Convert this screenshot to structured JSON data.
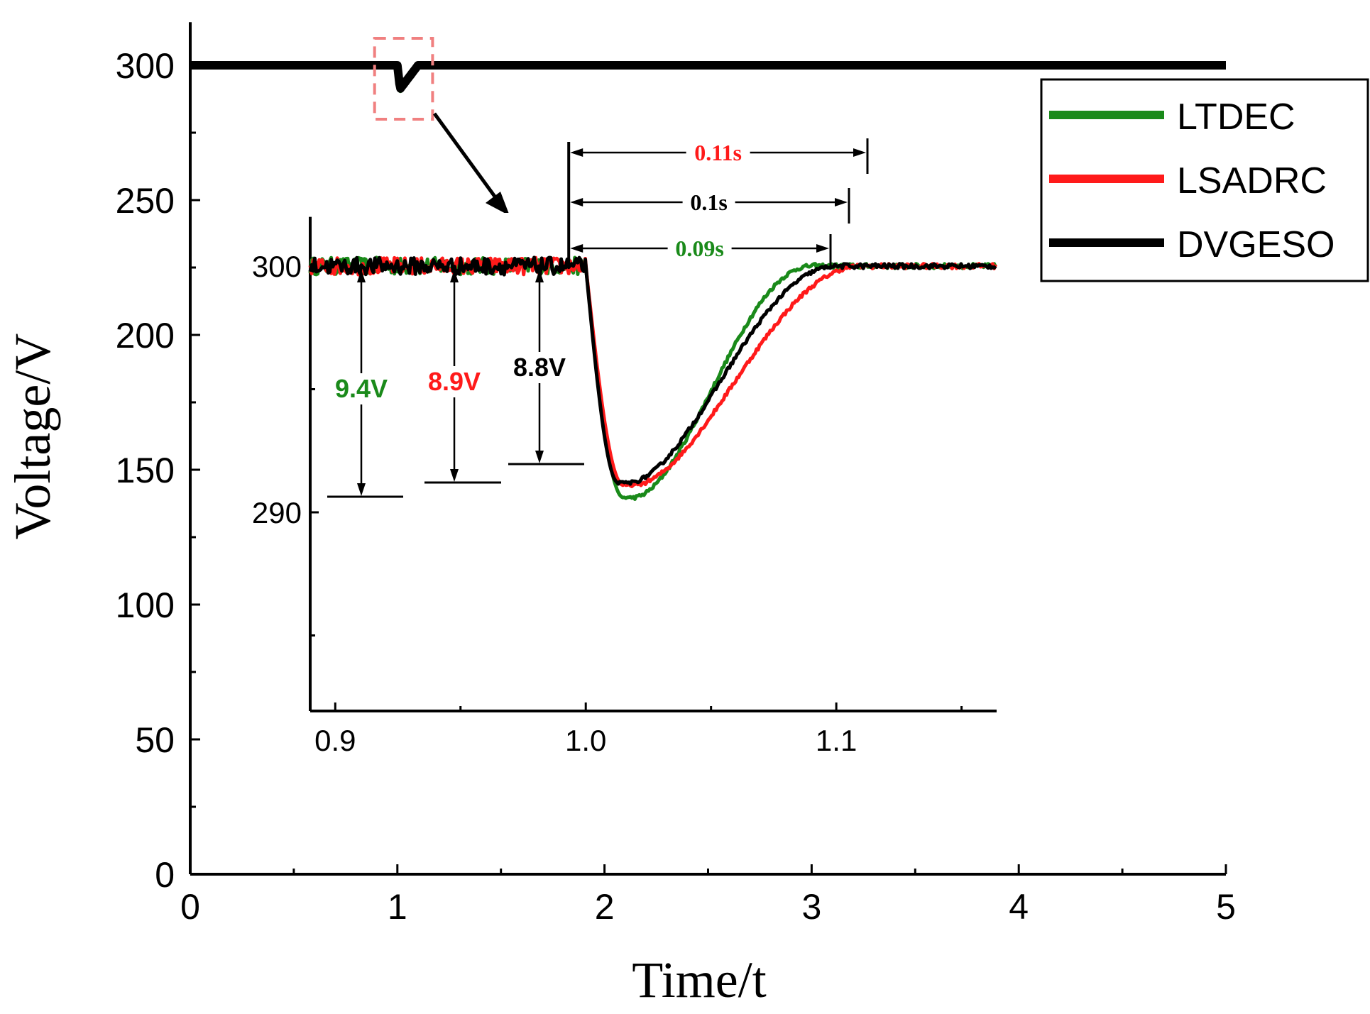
{
  "chart_data": [
    {
      "type": "line",
      "name": "main",
      "xlabel": "Time/t",
      "ylabel": "Voltage/V",
      "xlim": [
        0,
        5
      ],
      "ylim": [
        0,
        316
      ],
      "xticks": [
        0,
        1,
        2,
        3,
        4,
        5
      ],
      "xtick_labels": [
        "0",
        "1",
        "2",
        "3",
        "4",
        "5"
      ],
      "yticks": [
        0,
        50,
        100,
        150,
        200,
        250,
        300
      ],
      "ytick_labels": [
        "0",
        "50",
        "100",
        "150",
        "200",
        "250",
        "300"
      ],
      "legend_position": "top-right",
      "zoom_region": {
        "x": [
          0.89,
          1.17
        ],
        "y": [
          280,
          310
        ]
      },
      "series": [
        {
          "name": "LTDEC",
          "color": "#1a8a1a",
          "baseline": 300,
          "dip_start": 1.0,
          "dip_min_time": 1.015,
          "dip_min": 290.6,
          "recovery_time": 1.09
        },
        {
          "name": "LSADRC",
          "color": "#ff1a1a",
          "baseline": 300,
          "dip_start": 1.0,
          "dip_min_time": 1.015,
          "dip_min": 291.1,
          "recovery_time": 1.11
        },
        {
          "name": "DVGESO",
          "color": "#000000",
          "baseline": 300,
          "dip_start": 1.0,
          "dip_min_time": 1.013,
          "dip_min": 291.2,
          "recovery_time": 1.1
        }
      ]
    },
    {
      "type": "line",
      "name": "inset",
      "xlim": [
        0.89,
        1.164
      ],
      "ylim": [
        282,
        302
      ],
      "xticks": [
        0.9,
        1.0,
        1.1
      ],
      "xtick_labels": [
        "0.9",
        "1.0",
        "1.1"
      ],
      "yticks": [
        290,
        300
      ],
      "ytick_labels": [
        "290",
        "300"
      ],
      "annotations": {
        "times": [
          {
            "label": "0.11s",
            "value": 0.11,
            "color": "#ff1a1a"
          },
          {
            "label": "0.1s",
            "value": 0.1,
            "color": "#000000"
          },
          {
            "label": "0.09s",
            "value": 0.09,
            "color": "#1a8a1a"
          }
        ],
        "drops": [
          {
            "label": "9.4V",
            "value": 9.4,
            "color": "#1a8a1a"
          },
          {
            "label": "8.9V",
            "value": 8.9,
            "color": "#ff1a1a"
          },
          {
            "label": "8.8V",
            "value": 8.8,
            "color": "#000000"
          }
        ]
      }
    }
  ]
}
